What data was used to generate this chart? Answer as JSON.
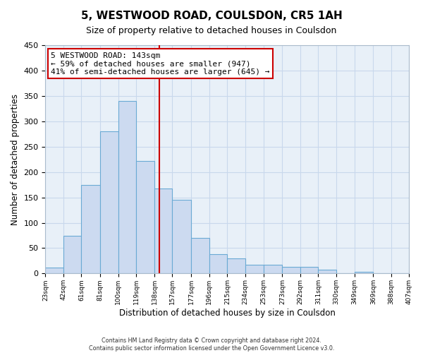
{
  "title": "5, WESTWOOD ROAD, COULSDON, CR5 1AH",
  "subtitle": "Size of property relative to detached houses in Coulsdon",
  "xlabel": "Distribution of detached houses by size in Coulsdon",
  "ylabel": "Number of detached properties",
  "bar_edges": [
    23,
    42,
    61,
    81,
    100,
    119,
    138,
    157,
    177,
    196,
    215,
    234,
    253,
    273,
    292,
    311,
    330,
    349,
    369,
    388,
    407
  ],
  "bar_heights": [
    12,
    75,
    175,
    280,
    340,
    222,
    167,
    145,
    70,
    38,
    30,
    17,
    17,
    13,
    13,
    7,
    0,
    3,
    0,
    0
  ],
  "bar_color": "#ccdaf0",
  "bar_edge_color": "#6aaad4",
  "grid_color": "#c8d8ec",
  "bg_color": "#e8f0f8",
  "vline_x": 143,
  "vline_color": "#cc0000",
  "annotation_title": "5 WESTWOOD ROAD: 143sqm",
  "annotation_line1": "← 59% of detached houses are smaller (947)",
  "annotation_line2": "41% of semi-detached houses are larger (645) →",
  "annotation_box_color": "#cc0000",
  "ylim": [
    0,
    450
  ],
  "yticks": [
    0,
    50,
    100,
    150,
    200,
    250,
    300,
    350,
    400,
    450
  ],
  "footer_line1": "Contains HM Land Registry data © Crown copyright and database right 2024.",
  "footer_line2": "Contains public sector information licensed under the Open Government Licence v3.0.",
  "tick_labels": [
    "23sqm",
    "42sqm",
    "61sqm",
    "81sqm",
    "100sqm",
    "119sqm",
    "138sqm",
    "157sqm",
    "177sqm",
    "196sqm",
    "215sqm",
    "234sqm",
    "253sqm",
    "273sqm",
    "292sqm",
    "311sqm",
    "330sqm",
    "349sqm",
    "369sqm",
    "388sqm",
    "407sqm"
  ]
}
